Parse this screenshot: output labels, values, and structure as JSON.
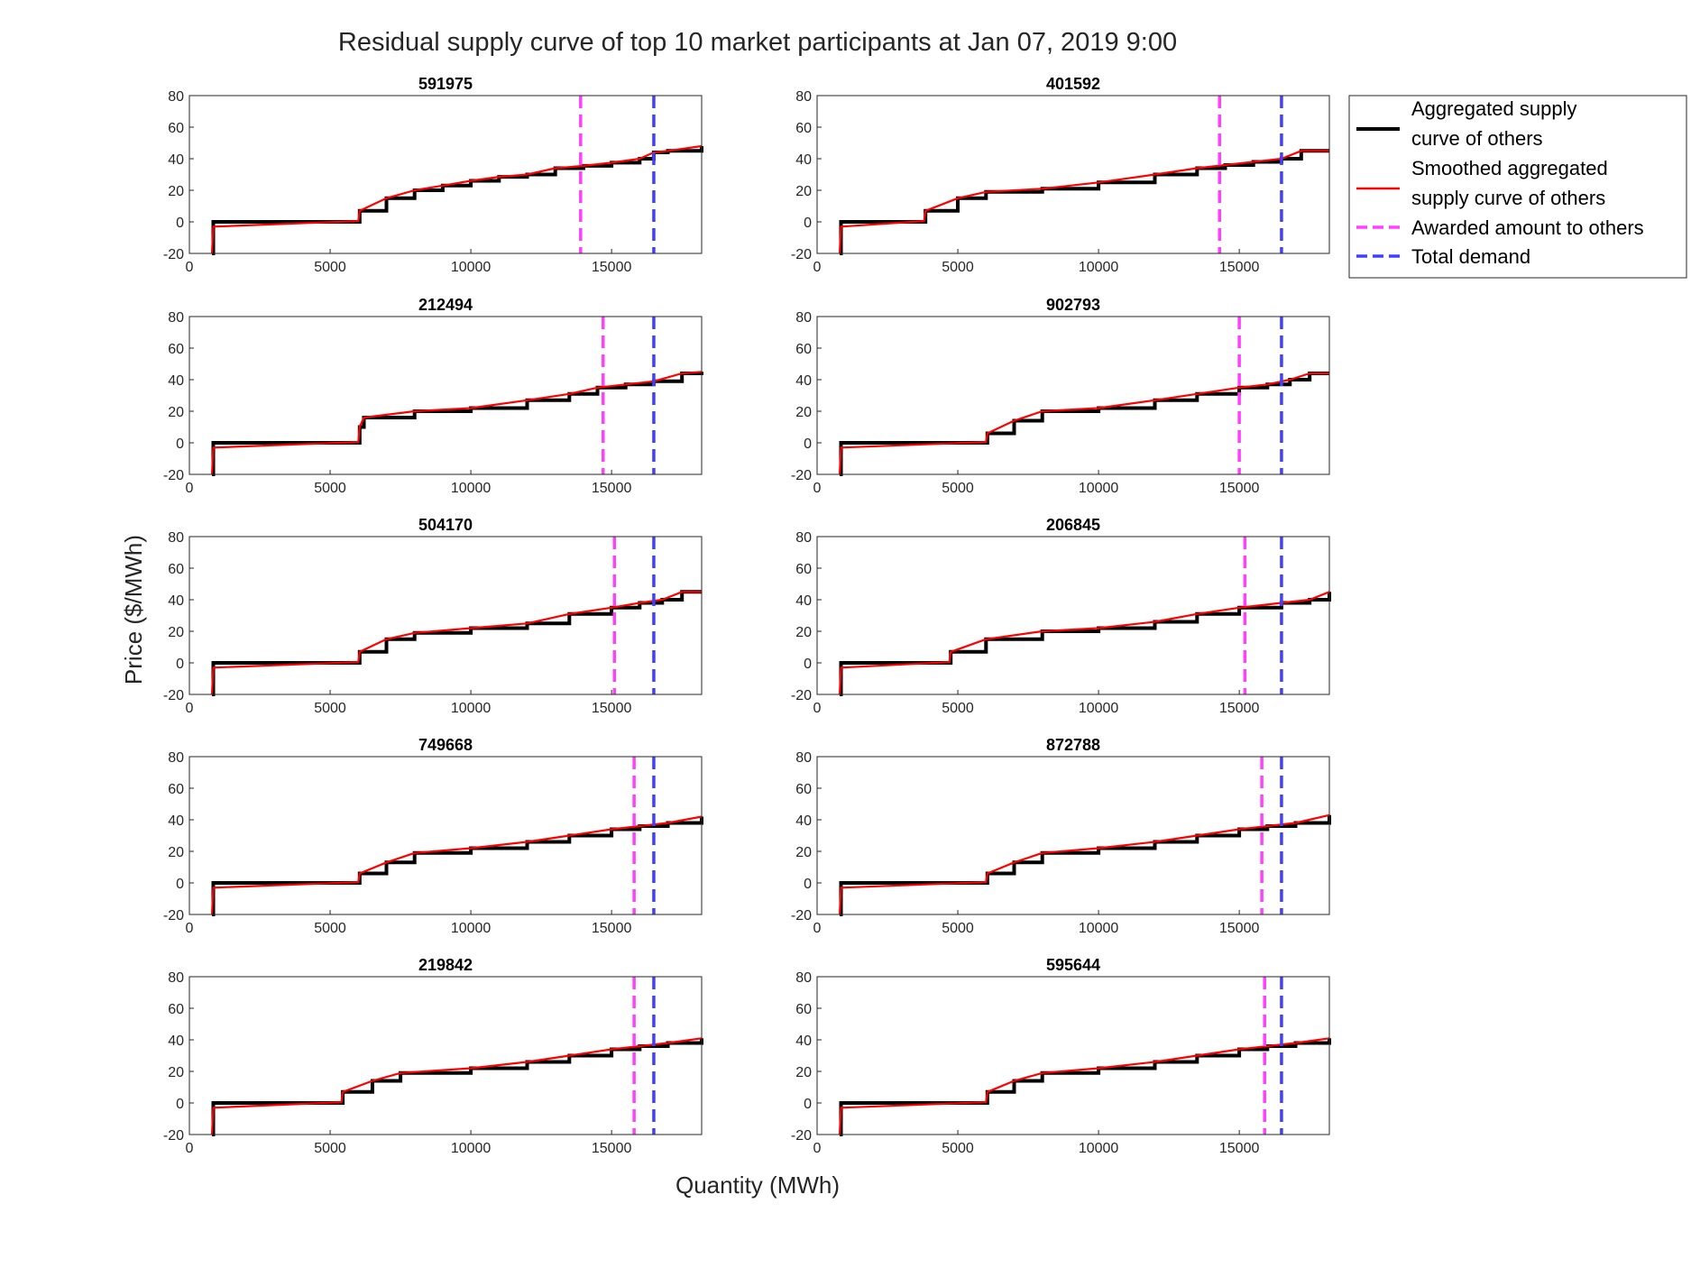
{
  "chart_data": {
    "type": "line",
    "title": "Residual supply curve of top 10 market participants at Jan 07, 2019 9:00",
    "xlabel": "Quantity (MWh)",
    "ylabel": "Price ($/MWh)",
    "xlim": [
      0,
      18200
    ],
    "ylim": [
      -20,
      80
    ],
    "xticks": [
      0,
      5000,
      10000,
      15000
    ],
    "yticks": [
      -20,
      0,
      20,
      40,
      60,
      80
    ],
    "total_demand": 16500,
    "legend": {
      "position": "top-right outside",
      "entries": [
        {
          "label_lines": [
            "Aggregated supply",
            "curve of others"
          ],
          "color": "#000000",
          "style": "solid"
        },
        {
          "label_lines": [
            "Smoothed aggregated",
            "supply curve of others"
          ],
          "color": "#ff0000",
          "style": "solid"
        },
        {
          "label_lines": [
            "Awarded amount to others"
          ],
          "color": "#ff40ff",
          "style": "dashed"
        },
        {
          "label_lines": [
            "Total demand"
          ],
          "color": "#4040ff",
          "style": "dashed"
        }
      ]
    },
    "colors": {
      "aggregated": "#000000",
      "smoothed": "#ff0000",
      "awarded": "#ff40ff",
      "demand": "#4040ff"
    },
    "panels": [
      {
        "id": "591975",
        "awarded": 13900,
        "curve": [
          [
            800,
            -20
          ],
          [
            850,
            0
          ],
          [
            6000,
            0
          ],
          [
            6050,
            7
          ],
          [
            7000,
            15
          ],
          [
            8000,
            20
          ],
          [
            9000,
            23
          ],
          [
            10000,
            26
          ],
          [
            11000,
            28.5
          ],
          [
            12000,
            30
          ],
          [
            13000,
            34
          ],
          [
            14000,
            35.5
          ],
          [
            15000,
            37.5
          ],
          [
            16000,
            40
          ],
          [
            16500,
            44
          ],
          [
            17000,
            45
          ],
          [
            18200,
            48
          ]
        ]
      },
      {
        "id": "401592",
        "awarded": 14300,
        "curve": [
          [
            800,
            -20
          ],
          [
            850,
            0
          ],
          [
            3800,
            0
          ],
          [
            3850,
            7
          ],
          [
            5000,
            15
          ],
          [
            6000,
            19
          ],
          [
            8000,
            21
          ],
          [
            10000,
            25
          ],
          [
            12000,
            30
          ],
          [
            13500,
            34
          ],
          [
            14500,
            36
          ],
          [
            15500,
            38
          ],
          [
            16500,
            40
          ],
          [
            17200,
            45
          ],
          [
            18200,
            45
          ]
        ]
      },
      {
        "id": "212494",
        "awarded": 14700,
        "curve": [
          [
            800,
            -20
          ],
          [
            850,
            0
          ],
          [
            6000,
            0
          ],
          [
            6050,
            10
          ],
          [
            6200,
            16
          ],
          [
            8000,
            20
          ],
          [
            10000,
            22
          ],
          [
            12000,
            27
          ],
          [
            13500,
            31
          ],
          [
            14500,
            35
          ],
          [
            15500,
            37
          ],
          [
            16500,
            39
          ],
          [
            17500,
            44
          ],
          [
            18200,
            45
          ]
        ]
      },
      {
        "id": "902793",
        "awarded": 15000,
        "curve": [
          [
            800,
            -20
          ],
          [
            850,
            0
          ],
          [
            6000,
            0
          ],
          [
            6050,
            6
          ],
          [
            7000,
            14
          ],
          [
            8000,
            20
          ],
          [
            10000,
            22
          ],
          [
            12000,
            27
          ],
          [
            13500,
            31
          ],
          [
            15000,
            35
          ],
          [
            16000,
            37
          ],
          [
            16800,
            40
          ],
          [
            17500,
            44
          ],
          [
            18200,
            44
          ]
        ]
      },
      {
        "id": "504170",
        "awarded": 15100,
        "curve": [
          [
            800,
            -20
          ],
          [
            850,
            0
          ],
          [
            6000,
            0
          ],
          [
            6050,
            7
          ],
          [
            7000,
            15
          ],
          [
            8000,
            19
          ],
          [
            10000,
            22
          ],
          [
            12000,
            25
          ],
          [
            13500,
            31
          ],
          [
            15000,
            35
          ],
          [
            16000,
            38
          ],
          [
            16800,
            40
          ],
          [
            17500,
            45
          ],
          [
            18200,
            45
          ]
        ]
      },
      {
        "id": "206845",
        "awarded": 15200,
        "curve": [
          [
            800,
            -20
          ],
          [
            850,
            0
          ],
          [
            4700,
            0
          ],
          [
            4750,
            7
          ],
          [
            6000,
            15
          ],
          [
            8000,
            20
          ],
          [
            10000,
            22
          ],
          [
            12000,
            26
          ],
          [
            13500,
            31
          ],
          [
            15000,
            35
          ],
          [
            16500,
            38
          ],
          [
            17500,
            40
          ],
          [
            18200,
            45
          ]
        ]
      },
      {
        "id": "749668",
        "awarded": 15800,
        "curve": [
          [
            800,
            -20
          ],
          [
            850,
            0
          ],
          [
            6000,
            0
          ],
          [
            6050,
            6
          ],
          [
            7000,
            13
          ],
          [
            8000,
            19
          ],
          [
            10000,
            22
          ],
          [
            12000,
            26
          ],
          [
            13500,
            30
          ],
          [
            15000,
            34
          ],
          [
            16000,
            36
          ],
          [
            17000,
            38
          ],
          [
            18200,
            42
          ]
        ]
      },
      {
        "id": "872788",
        "awarded": 15800,
        "curve": [
          [
            800,
            -20
          ],
          [
            850,
            0
          ],
          [
            6000,
            0
          ],
          [
            6050,
            6
          ],
          [
            7000,
            13
          ],
          [
            8000,
            19
          ],
          [
            10000,
            22
          ],
          [
            12000,
            26
          ],
          [
            13500,
            30
          ],
          [
            15000,
            34
          ],
          [
            16000,
            36
          ],
          [
            17000,
            38
          ],
          [
            18200,
            43
          ]
        ]
      },
      {
        "id": "219842",
        "awarded": 15800,
        "curve": [
          [
            800,
            -20
          ],
          [
            850,
            0
          ],
          [
            5400,
            0
          ],
          [
            5450,
            7
          ],
          [
            6500,
            14
          ],
          [
            7500,
            19
          ],
          [
            10000,
            22
          ],
          [
            12000,
            26
          ],
          [
            13500,
            30
          ],
          [
            15000,
            34
          ],
          [
            16000,
            36
          ],
          [
            17000,
            38
          ],
          [
            18200,
            41
          ]
        ]
      },
      {
        "id": "595644",
        "awarded": 15900,
        "curve": [
          [
            800,
            -20
          ],
          [
            850,
            0
          ],
          [
            6000,
            0
          ],
          [
            6050,
            7
          ],
          [
            7000,
            14
          ],
          [
            8000,
            19
          ],
          [
            10000,
            22
          ],
          [
            12000,
            26
          ],
          [
            13500,
            30
          ],
          [
            15000,
            34
          ],
          [
            16000,
            36
          ],
          [
            17000,
            38
          ],
          [
            18200,
            41
          ]
        ]
      }
    ]
  }
}
